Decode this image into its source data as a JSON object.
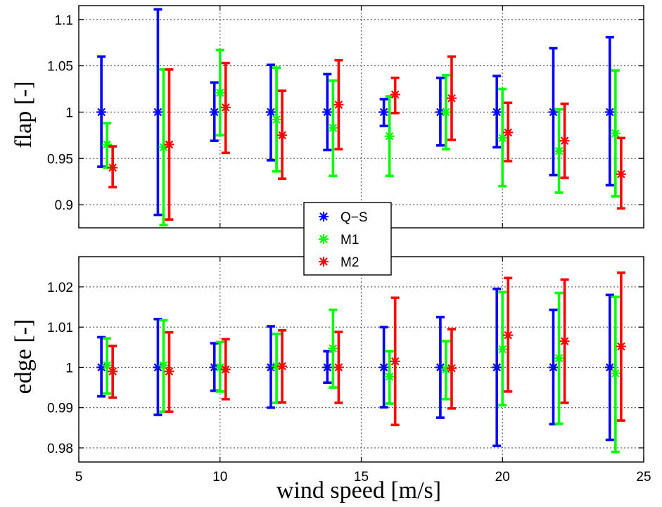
{
  "chart_data": {
    "type": "scatter",
    "xlabel": "wind speed [m/s]",
    "x_ticks": [
      5,
      10,
      15,
      20,
      25
    ],
    "xlim": [
      5,
      25
    ],
    "grid": true,
    "legend": {
      "placement": "between-panels",
      "entries": [
        {
          "name": "Q−S",
          "color": "#0000ff"
        },
        {
          "name": "M1",
          "color": "#00ff00"
        },
        {
          "name": "M2",
          "color": "#ff0000"
        }
      ]
    },
    "panels": [
      {
        "id": "flap",
        "ylabel": "flap [-]",
        "ylim": [
          0.875,
          1.115
        ],
        "y_ticks": [
          0.9,
          0.95,
          1,
          1.05,
          1.1
        ],
        "y_tick_labels": [
          "0.9",
          "0.95",
          "1",
          "1.05",
          "1.1"
        ],
        "series": [
          {
            "name": "Q−S",
            "color": "#0000ff",
            "x": [
              5.8,
              7.8,
              9.8,
              11.8,
              13.8,
              15.8,
              17.8,
              19.8,
              21.8,
              23.8
            ],
            "y": [
              1,
              1,
              1,
              1,
              1,
              1,
              1,
              1,
              1,
              1
            ],
            "low": [
              0.941,
              0.889,
              0.969,
              0.948,
              0.959,
              0.985,
              0.964,
              0.962,
              0.932,
              0.921
            ],
            "high": [
              1.06,
              1.111,
              1.032,
              1.051,
              1.041,
              1.014,
              1.037,
              1.039,
              1.069,
              1.081
            ]
          },
          {
            "name": "M1",
            "color": "#00ff00",
            "x": [
              6.0,
              8.0,
              10.0,
              12.0,
              14.0,
              16.0,
              18.0,
              20.0,
              22.0,
              24.0
            ],
            "y": [
              0.965,
              0.962,
              1.021,
              0.992,
              0.983,
              0.974,
              1.0,
              0.972,
              0.958,
              0.977
            ],
            "low": [
              0.94,
              0.878,
              0.975,
              0.936,
              0.931,
              0.931,
              0.96,
              0.92,
              0.913,
              0.909
            ],
            "high": [
              0.988,
              1.046,
              1.067,
              1.048,
              1.034,
              1.017,
              1.04,
              1.025,
              1.003,
              1.045
            ]
          },
          {
            "name": "M2",
            "color": "#ff0000",
            "x": [
              6.2,
              8.2,
              10.2,
              12.2,
              14.2,
              16.2,
              18.2,
              20.2,
              22.2,
              24.2
            ],
            "y": [
              0.94,
              0.965,
              1.005,
              0.975,
              1.008,
              1.019,
              1.015,
              0.978,
              0.969,
              0.933
            ],
            "low": [
              0.919,
              0.884,
              0.956,
              0.928,
              0.96,
              0.999,
              0.97,
              0.947,
              0.929,
              0.896
            ],
            "high": [
              0.963,
              1.046,
              1.053,
              1.023,
              1.056,
              1.037,
              1.06,
              1.01,
              1.009,
              0.972
            ]
          }
        ]
      },
      {
        "id": "edge",
        "ylabel": "edge [-]",
        "ylim": [
          0.9765,
          1.0275
        ],
        "y_ticks": [
          0.98,
          0.99,
          1,
          1.01,
          1.02
        ],
        "y_tick_labels": [
          "0.98",
          "0.99",
          "1",
          "1.01",
          "1.02"
        ],
        "series": [
          {
            "name": "Q−S",
            "color": "#0000ff",
            "x": [
              5.8,
              7.8,
              9.8,
              11.8,
              13.8,
              15.8,
              17.8,
              19.8,
              21.8,
              23.8
            ],
            "y": [
              1,
              1,
              1,
              1,
              1,
              1,
              1,
              1,
              1,
              1
            ],
            "low": [
              0.9928,
              0.9882,
              0.9942,
              0.99,
              0.9962,
              0.9901,
              0.9875,
              0.9805,
              0.9859,
              0.982
            ],
            "high": [
              1.0075,
              1.012,
              1.006,
              1.0102,
              1.004,
              1.01,
              1.0125,
              1.0195,
              1.0143,
              1.018
            ]
          },
          {
            "name": "M1",
            "color": "#00ff00",
            "x": [
              6.0,
              8.0,
              10.0,
              12.0,
              14.0,
              16.0,
              18.0,
              20.0,
              22.0,
              24.0
            ],
            "y": [
              1.0005,
              1.0005,
              1.0,
              1.0003,
              1.0047,
              0.9977,
              0.9995,
              1.0045,
              1.0023,
              0.9985
            ],
            "low": [
              0.9935,
              0.989,
              0.994,
              0.9912,
              0.995,
              0.991,
              0.9921,
              0.9906,
              0.986,
              0.979
            ],
            "high": [
              1.0072,
              1.0117,
              1.0063,
              1.0083,
              1.0143,
              1.004,
              1.0065,
              1.0187,
              1.0185,
              1.0175
            ]
          },
          {
            "name": "M2",
            "color": "#ff0000",
            "x": [
              6.2,
              8.2,
              10.2,
              12.2,
              14.2,
              16.2,
              18.2,
              20.2,
              22.2,
              24.2
            ],
            "y": [
              0.999,
              0.999,
              0.9995,
              1.0003,
              1.0,
              1.0015,
              0.9998,
              1.008,
              1.0065,
              1.0052
            ],
            "low": [
              0.9925,
              0.989,
              0.9921,
              0.9913,
              0.9912,
              0.9857,
              0.9898,
              0.994,
              0.9912,
              0.9868
            ],
            "high": [
              1.0053,
              1.0087,
              1.007,
              1.0092,
              1.0088,
              1.0173,
              1.0095,
              1.0222,
              1.0218,
              1.0235
            ]
          }
        ]
      }
    ]
  }
}
